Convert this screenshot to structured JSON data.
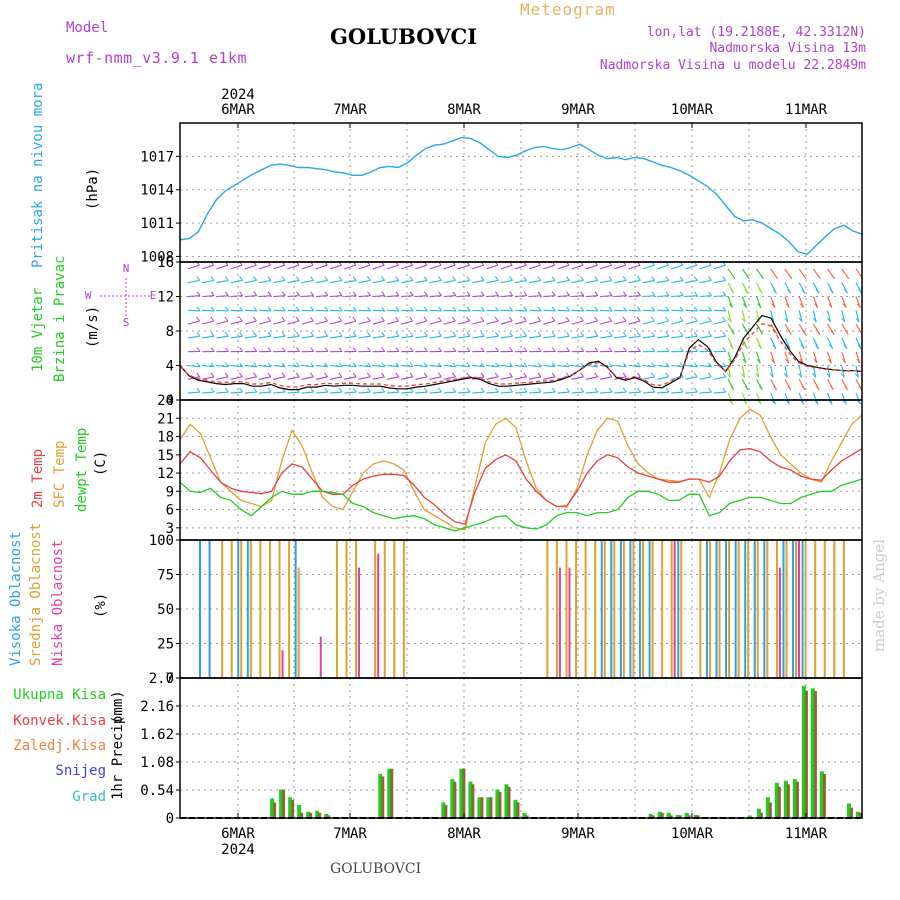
{
  "header": {
    "model_label": "Model",
    "model_name": "wrf-nmm_v3.9.1 e1km",
    "station": "GOLUBOVCI",
    "product": "Meteogram",
    "lonlat": "lon,lat (19.2188E, 42.3312N)",
    "elevation": "Nadmorska Visina 13m",
    "model_elevation": "Nadmorska Visina u modelu 22.2849m",
    "footer_station": "GOLUBOVCI",
    "credit": "made by Angel",
    "top_year": "2024",
    "bottom_year": "2024"
  },
  "colors": {
    "pressure": "#29a8e0",
    "wind_label": "#22cc22",
    "wind_legend": "#b040d0",
    "temp2m": "#e84040",
    "sfc": "#e0a030",
    "dewpt": "#22cc22",
    "cloud_high": "#30a0e0",
    "cloud_mid": "#e0a030",
    "cloud_low": "#e040a0",
    "precip_total": "#22cc22",
    "precip_conv": "#e84040",
    "precip_frz": "#f08040",
    "snow": "#4040e0",
    "graupel": "#30c0c0"
  },
  "chart_data": [
    {
      "type": "line",
      "id": "pressure",
      "ylabel": "Pritisak na nivou mora",
      "unit": "(hPa)",
      "x_ticks": [
        "6MAR",
        "7MAR",
        "8MAR",
        "9MAR",
        "10MAR",
        "11MAR"
      ],
      "ylim": [
        1007.5,
        1020
      ],
      "yticks": [
        "1008",
        "1011",
        "1014",
        "1017"
      ],
      "grid": true,
      "series": [
        {
          "values": [
            1009.5,
            1009.6,
            1010.2,
            1011.8,
            1013.1,
            1013.9,
            1014.4,
            1014.9,
            1015.4,
            1015.8,
            1016.2,
            1016.3,
            1016.2,
            1016.0,
            1016.0,
            1015.9,
            1015.8,
            1015.6,
            1015.5,
            1015.3,
            1015.3,
            1015.6,
            1016.0,
            1016.1,
            1016.0,
            1016.4,
            1017.1,
            1017.7,
            1018.0,
            1018.1,
            1018.4,
            1018.7,
            1018.6,
            1018.2,
            1017.6,
            1017.0,
            1016.9,
            1017.1,
            1017.5,
            1017.8,
            1017.9,
            1017.7,
            1017.6,
            1017.8,
            1018.1,
            1017.6,
            1017.1,
            1016.8,
            1016.9,
            1016.7,
            1016.9,
            1016.8,
            1016.5,
            1016.2,
            1016.0,
            1015.7,
            1015.3,
            1014.8,
            1014.3,
            1013.6,
            1012.6,
            1011.6,
            1011.2,
            1011.3,
            1011.0,
            1010.5,
            1010.0,
            1009.3,
            1008.4,
            1008.2,
            1009.0,
            1009.8,
            1010.5,
            1010.8,
            1010.3,
            1010.0
          ]
        }
      ]
    },
    {
      "type": "line",
      "id": "wind",
      "ylabel": "10m Vjetar Brzina i Pravac",
      "unit": "(m/s)",
      "ylim": [
        0,
        16
      ],
      "yticks": [
        "0",
        "4",
        "8",
        "12",
        "16"
      ],
      "compass": [
        "N",
        "E",
        "S",
        "W"
      ],
      "grid": true,
      "series": [
        {
          "values": [
            4.0,
            2.8,
            2.3,
            2.1,
            1.9,
            1.8,
            1.9,
            1.9,
            1.6,
            1.6,
            1.8,
            1.4,
            1.2,
            1.2,
            1.5,
            1.5,
            1.7,
            1.6,
            1.7,
            1.7,
            1.6,
            1.6,
            1.6,
            1.4,
            1.3,
            1.3,
            1.5,
            1.6,
            1.8,
            2.0,
            2.2,
            2.4,
            2.6,
            2.4,
            1.9,
            1.6,
            1.6,
            1.7,
            1.8,
            1.9,
            2.0,
            2.1,
            2.4,
            2.8,
            3.5,
            4.3,
            4.5,
            3.8,
            2.6,
            2.3,
            2.6,
            2.2,
            1.5,
            1.4,
            2.0,
            2.6,
            6.0,
            7.0,
            6.2,
            4.4,
            3.3,
            4.9,
            7.2,
            8.5,
            9.8,
            9.5,
            7.5,
            5.8,
            4.5,
            4.0,
            3.8,
            3.6,
            3.5,
            3.4,
            3.4,
            3.3
          ]
        }
      ]
    },
    {
      "type": "line",
      "id": "temperature",
      "ylabel": "2m Temp / SFC Temp / dewpt Temp",
      "unit": "(C)",
      "ylim": [
        1,
        24
      ],
      "yticks": [
        "3",
        "6",
        "9",
        "12",
        "15",
        "18",
        "21",
        "24"
      ],
      "grid": true,
      "series": [
        {
          "name": "2m Temp",
          "values": [
            13.5,
            15.5,
            14.5,
            12.5,
            10.5,
            9.5,
            9.0,
            8.8,
            8.6,
            9.0,
            12.0,
            13.5,
            13.0,
            11.0,
            9.0,
            8.5,
            8.5,
            10.0,
            11.0,
            11.5,
            11.8,
            11.8,
            11.6,
            10.0,
            8.0,
            6.8,
            5.2,
            4.0,
            3.6,
            9.0,
            12.8,
            14.2,
            15.0,
            14.0,
            11.0,
            9.0,
            7.5,
            6.5,
            6.6,
            9.0,
            12.0,
            14.0,
            15.0,
            14.5,
            13.0,
            12.0,
            11.5,
            11.0,
            10.5,
            10.5,
            11.0,
            11.0,
            10.5,
            11.5,
            14.0,
            15.8,
            16.0,
            15.5,
            14.0,
            13.0,
            12.5,
            11.5,
            11.0,
            10.8,
            12.5,
            14.0,
            15.0,
            16.0
          ]
        },
        {
          "name": "SFC Temp",
          "values": [
            17.5,
            20.0,
            18.5,
            14.5,
            10.5,
            9.0,
            7.5,
            7.0,
            6.5,
            7.5,
            14.0,
            19.0,
            16.5,
            12.0,
            8.0,
            6.5,
            6.0,
            9.0,
            12.0,
            13.5,
            14.0,
            13.5,
            12.5,
            9.0,
            6.0,
            5.0,
            4.0,
            3.0,
            2.7,
            10.0,
            17.0,
            20.0,
            21.0,
            19.5,
            14.0,
            9.5,
            7.5,
            6.5,
            6.4,
            9.5,
            15.0,
            19.0,
            21.0,
            20.5,
            16.5,
            13.5,
            12.0,
            11.0,
            10.8,
            10.6,
            11.0,
            11.0,
            8.0,
            12.0,
            17.5,
            21.0,
            22.5,
            21.5,
            18.0,
            15.0,
            13.5,
            12.0,
            11.0,
            10.5,
            14.0,
            17.0,
            20.0,
            21.5
          ]
        },
        {
          "name": "dewpt Temp",
          "values": [
            10.5,
            9.0,
            8.8,
            9.5,
            8.0,
            7.5,
            6.0,
            5.0,
            6.5,
            8.0,
            9.0,
            8.5,
            8.5,
            9.0,
            9.0,
            8.8,
            8.5,
            7.0,
            6.5,
            5.5,
            5.0,
            4.5,
            4.8,
            5.0,
            4.5,
            3.5,
            3.0,
            2.5,
            3.0,
            3.5,
            4.0,
            4.8,
            5.0,
            3.5,
            3.0,
            2.8,
            3.5,
            5.0,
            5.5,
            5.5,
            5.0,
            5.5,
            5.5,
            6.0,
            8.0,
            9.0,
            9.0,
            8.5,
            7.5,
            7.5,
            8.5,
            8.5,
            5.0,
            5.5,
            7.0,
            7.5,
            8.0,
            8.0,
            7.5,
            7.0,
            7.0,
            8.0,
            8.5,
            9.0,
            9.0,
            10.0,
            10.5,
            11.0
          ]
        }
      ]
    },
    {
      "type": "bar",
      "id": "clouds",
      "ylabel": "Visoka Oblacnost / Srednja Oblacnost / Niska Oblacnost",
      "unit": "(%)",
      "ylim": [
        0,
        100
      ],
      "yticks": [
        "0",
        "25",
        "50",
        "75",
        "100"
      ],
      "grid": true,
      "series": [
        {
          "name": "Visoka Oblacnost",
          "values": [
            100,
            100,
            0,
            0,
            100,
            100,
            0,
            0,
            0,
            0,
            100,
            0,
            0,
            0,
            0,
            0,
            0,
            0,
            0,
            0,
            0,
            0,
            0,
            0,
            0,
            0,
            0,
            0,
            0,
            0,
            0,
            0,
            0,
            0,
            0,
            0,
            0,
            0,
            0,
            0,
            0,
            0,
            100,
            100,
            100,
            100,
            100,
            100,
            0,
            0,
            100,
            0,
            0,
            100,
            100,
            100,
            100,
            100,
            100,
            100,
            0,
            100,
            100,
            100,
            0,
            0,
            0,
            0,
            0,
            0
          ]
        },
        {
          "name": "Srednja Oblacnost",
          "values": [
            0,
            0,
            100,
            100,
            100,
            100,
            100,
            100,
            100,
            100,
            80,
            0,
            0,
            0,
            100,
            100,
            100,
            0,
            100,
            100,
            100,
            100,
            0,
            0,
            0,
            0,
            0,
            0,
            0,
            0,
            0,
            0,
            0,
            0,
            0,
            0,
            100,
            100,
            100,
            100,
            100,
            100,
            100,
            100,
            100,
            100,
            100,
            100,
            100,
            100,
            100,
            0,
            100,
            100,
            100,
            100,
            100,
            100,
            100,
            100,
            100,
            100,
            100,
            100,
            100,
            100,
            100,
            100
          ]
        },
        {
          "name": "Niska Oblacnost",
          "values": [
            0,
            0,
            0,
            0,
            0,
            0,
            0,
            0,
            20,
            0,
            0,
            0,
            30,
            0,
            0,
            0,
            80,
            0,
            90,
            0,
            0,
            0,
            0,
            0,
            0,
            0,
            0,
            0,
            0,
            0,
            0,
            0,
            0,
            0,
            0,
            0,
            0,
            80,
            80,
            0,
            0,
            0,
            0,
            0,
            0,
            0,
            0,
            0,
            0,
            100,
            0,
            0,
            0,
            0,
            0,
            0,
            0,
            0,
            0,
            0,
            80,
            0,
            100,
            0,
            0,
            0,
            0,
            0
          ]
        }
      ]
    },
    {
      "type": "bar",
      "id": "precip",
      "ylabel": "1hr Precip",
      "unit": "(mm)",
      "ylim": [
        0,
        2.7
      ],
      "yticks": [
        "0",
        "0.54",
        "1.08",
        "1.62",
        "2.16",
        "2.7"
      ],
      "grid": true,
      "legend": [
        "Ukupna Kisa",
        "Konvek.Kisa",
        "Zaledj.Kisa",
        "Snijeg",
        "Grad"
      ],
      "series": [
        {
          "name": "Ukupna Kisa",
          "values": [
            0,
            0,
            0,
            0,
            0,
            0,
            0,
            0,
            0.38,
            0.55,
            0.4,
            0.25,
            0.12,
            0.14,
            0.08,
            0,
            0,
            0,
            0,
            0,
            0.85,
            0.95,
            0,
            0,
            0,
            0,
            0,
            0.3,
            0.75,
            0.95,
            0.7,
            0.4,
            0.4,
            0.55,
            0.65,
            0.35,
            0.1,
            0,
            0,
            0,
            0,
            0,
            0,
            0,
            0,
            0,
            0,
            0,
            0,
            0,
            0.08,
            0.12,
            0.1,
            0.06,
            0.1,
            0.06,
            0,
            0,
            0,
            0,
            0,
            0.05,
            0.18,
            0.4,
            0.68,
            0.72,
            0.75,
            2.55,
            2.5,
            0.9,
            0,
            0,
            0.28,
            0.12
          ]
        },
        {
          "name": "Konvek.Kisa",
          "values": [
            0,
            0,
            0,
            0,
            0,
            0,
            0,
            0,
            0.3,
            0.55,
            0.35,
            0.1,
            0.1,
            0.1,
            0.05,
            0,
            0,
            0,
            0,
            0,
            0.8,
            0.95,
            0,
            0,
            0,
            0,
            0,
            0.25,
            0.7,
            0.95,
            0.65,
            0.4,
            0.4,
            0.5,
            0.6,
            0.3,
            0.05,
            0,
            0,
            0,
            0,
            0,
            0,
            0,
            0,
            0,
            0,
            0,
            0,
            0,
            0.05,
            0.1,
            0.05,
            0.05,
            0.05,
            0.05,
            0,
            0,
            0,
            0,
            0,
            0,
            0.1,
            0.3,
            0.6,
            0.65,
            0.7,
            2.45,
            2.45,
            0.85,
            0,
            0,
            0.2,
            0.1
          ]
        }
      ]
    }
  ]
}
